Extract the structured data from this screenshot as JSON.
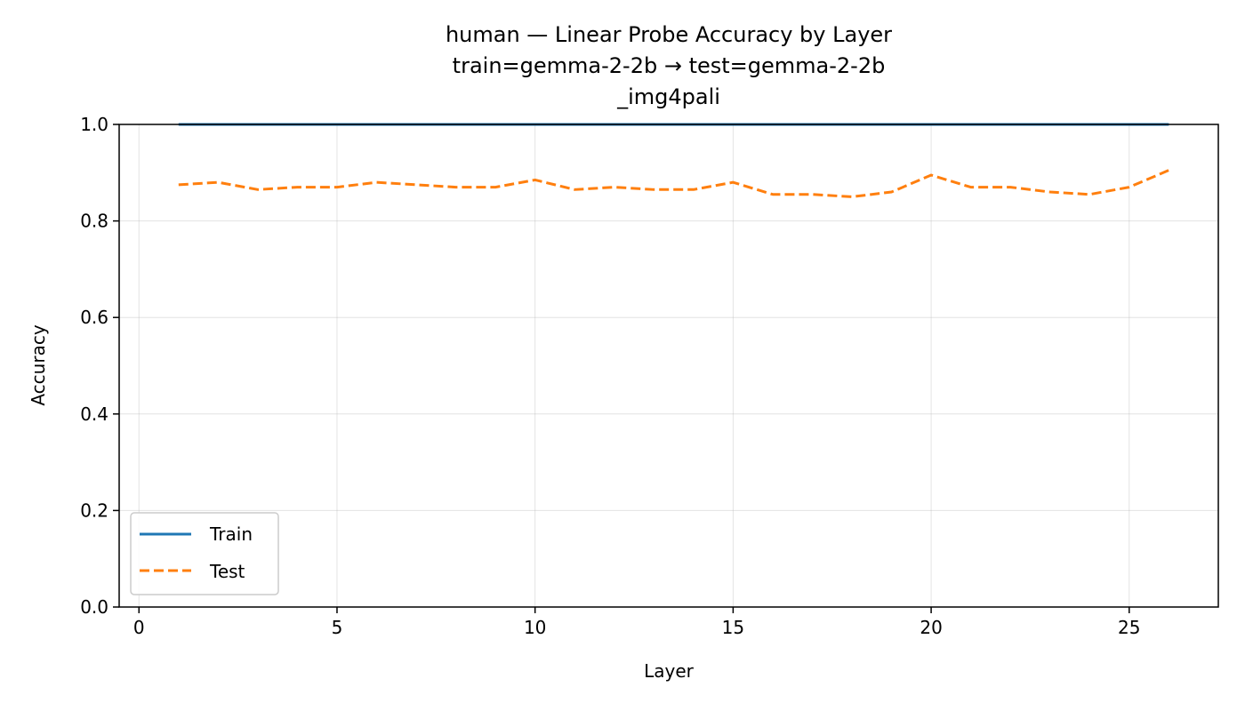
{
  "chart_data": {
    "type": "line",
    "title_lines": [
      "human — Linear Probe Accuracy by Layer",
      "train=gemma-2-2b → test=gemma-2-2b",
      "_img4pali"
    ],
    "xlabel": "Layer",
    "ylabel": "Accuracy",
    "xlim": [
      -0.5,
      27.25
    ],
    "ylim": [
      0.0,
      1.0
    ],
    "xticks": [
      0,
      5,
      10,
      15,
      20,
      25
    ],
    "yticks": [
      0.0,
      0.2,
      0.4,
      0.6,
      0.8,
      1.0
    ],
    "grid": true,
    "legend_position": "lower-left",
    "x": [
      1,
      2,
      3,
      4,
      5,
      6,
      7,
      8,
      9,
      10,
      11,
      12,
      13,
      14,
      15,
      16,
      17,
      18,
      19,
      20,
      21,
      22,
      23,
      24,
      25,
      26
    ],
    "series": [
      {
        "name": "Train",
        "color": "#1f77b4",
        "style": "solid",
        "values": [
          1.0,
          1.0,
          1.0,
          1.0,
          1.0,
          1.0,
          1.0,
          1.0,
          1.0,
          1.0,
          1.0,
          1.0,
          1.0,
          1.0,
          1.0,
          1.0,
          1.0,
          1.0,
          1.0,
          1.0,
          1.0,
          1.0,
          1.0,
          1.0,
          1.0,
          1.0
        ]
      },
      {
        "name": "Test",
        "color": "#ff7f0e",
        "style": "dashed",
        "values": [
          0.875,
          0.88,
          0.865,
          0.87,
          0.87,
          0.88,
          0.875,
          0.87,
          0.87,
          0.885,
          0.865,
          0.87,
          0.865,
          0.865,
          0.88,
          0.855,
          0.855,
          0.85,
          0.86,
          0.895,
          0.87,
          0.87,
          0.86,
          0.855,
          0.87,
          0.905
        ]
      }
    ]
  }
}
